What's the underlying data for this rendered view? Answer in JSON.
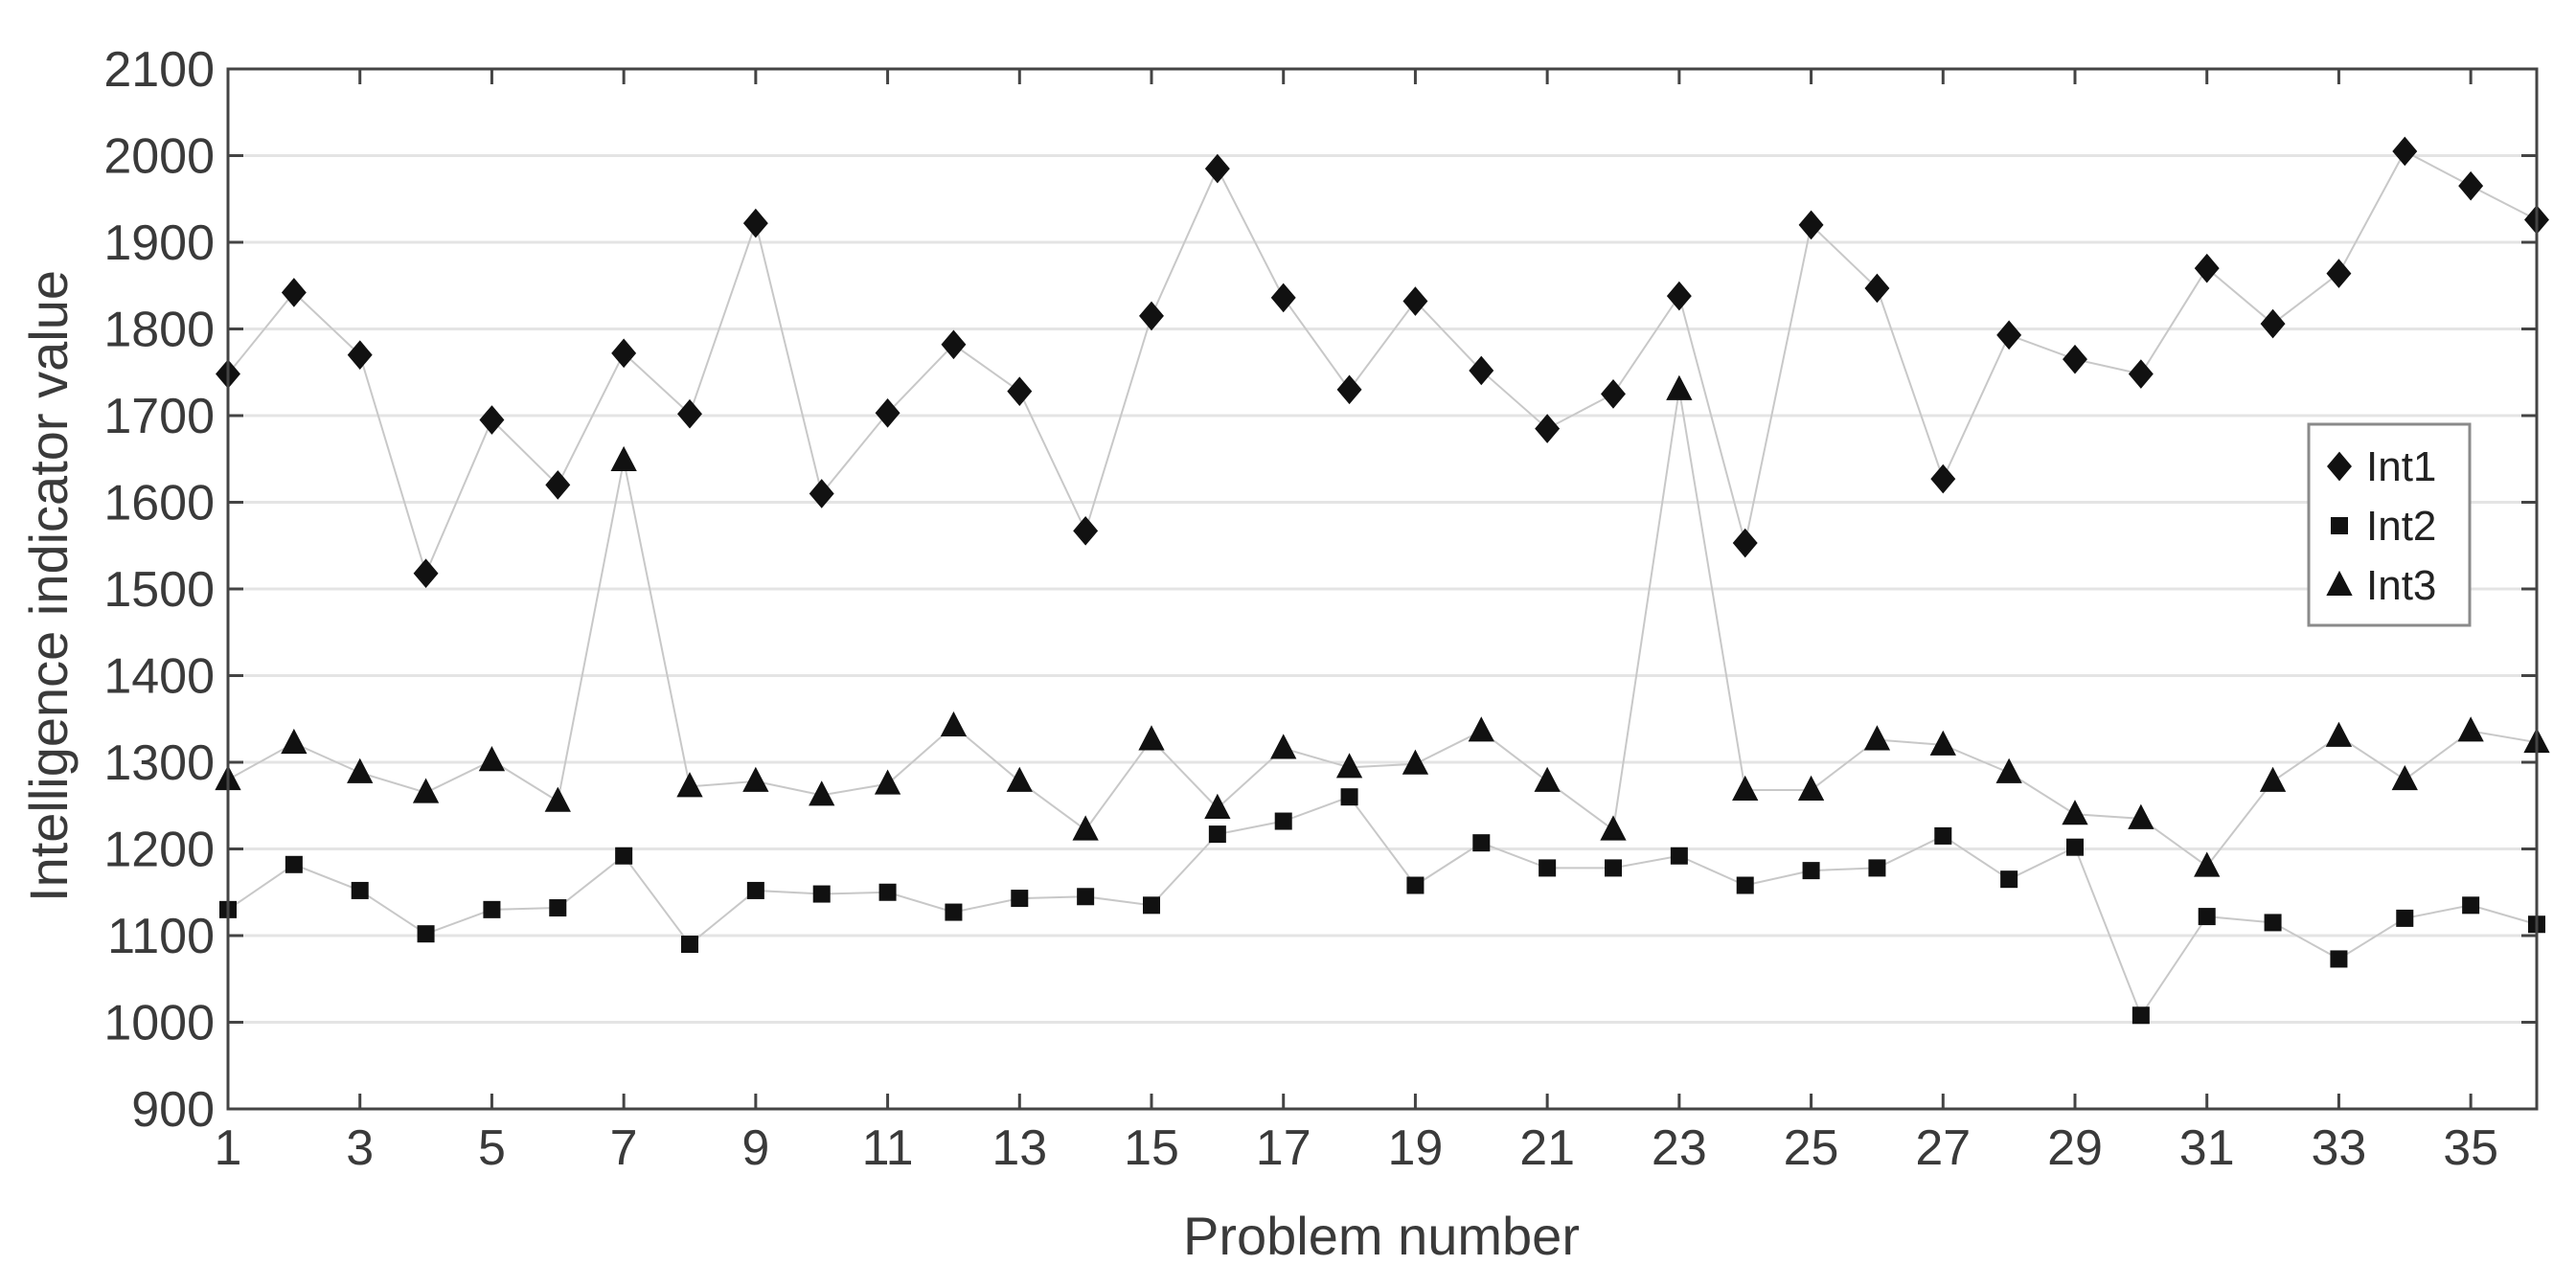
{
  "chart_data": {
    "type": "scatter",
    "xlabel": "Problem number",
    "ylabel": "Intelligence indicator value",
    "xlim": [
      1,
      36
    ],
    "ylim": [
      900,
      2100
    ],
    "xticks": [
      1,
      3,
      5,
      7,
      9,
      11,
      13,
      15,
      17,
      19,
      21,
      23,
      25,
      27,
      29,
      31,
      33,
      35
    ],
    "yticks": [
      900,
      1000,
      1100,
      1200,
      1300,
      1400,
      1500,
      1600,
      1700,
      1800,
      1900,
      2000,
      2100
    ],
    "grid": "horizontal",
    "legend_position": "right",
    "lines_connect_points": true,
    "x": [
      1,
      2,
      3,
      4,
      5,
      6,
      7,
      8,
      9,
      10,
      11,
      12,
      13,
      14,
      15,
      16,
      17,
      18,
      19,
      20,
      21,
      22,
      23,
      24,
      25,
      26,
      27,
      28,
      29,
      30,
      31,
      32,
      33,
      34,
      35,
      36
    ],
    "series": [
      {
        "name": "Int1",
        "marker": "diamond",
        "values": [
          1748,
          1842,
          1770,
          1518,
          1695,
          1620,
          1772,
          1702,
          1922,
          1610,
          1703,
          1782,
          1728,
          1567,
          1815,
          1985,
          1836,
          1730,
          1832,
          1752,
          1685,
          1725,
          1838,
          1553,
          1920,
          1847,
          1627,
          1793,
          1765,
          1748,
          1870,
          1806,
          1864,
          2005,
          1965,
          1926
        ]
      },
      {
        "name": "Int2",
        "marker": "square",
        "values": [
          1130,
          1182,
          1152,
          1102,
          1130,
          1132,
          1192,
          1090,
          1152,
          1148,
          1150,
          1127,
          1143,
          1145,
          1135,
          1217,
          1232,
          1260,
          1158,
          1207,
          1178,
          1178,
          1192,
          1158,
          1175,
          1178,
          1215,
          1165,
          1202,
          1008,
          1122,
          1115,
          1073,
          1120,
          1135,
          1113
        ]
      },
      {
        "name": "Int3",
        "marker": "triangle",
        "values": [
          1280,
          1322,
          1288,
          1265,
          1302,
          1255,
          1648,
          1272,
          1278,
          1262,
          1275,
          1342,
          1278,
          1222,
          1326,
          1247,
          1316,
          1294,
          1298,
          1336,
          1278,
          1222,
          1730,
          1268,
          1268,
          1326,
          1320,
          1288,
          1240,
          1235,
          1180,
          1278,
          1330,
          1280,
          1336,
          1323
        ]
      }
    ],
    "colors": {
      "markers": "#111111",
      "connector": "#c8c8c8",
      "grid": "#e4e4e4",
      "axes": "#444444",
      "text": "#3a3a3a",
      "legend_border": "#8a8a8a"
    }
  }
}
